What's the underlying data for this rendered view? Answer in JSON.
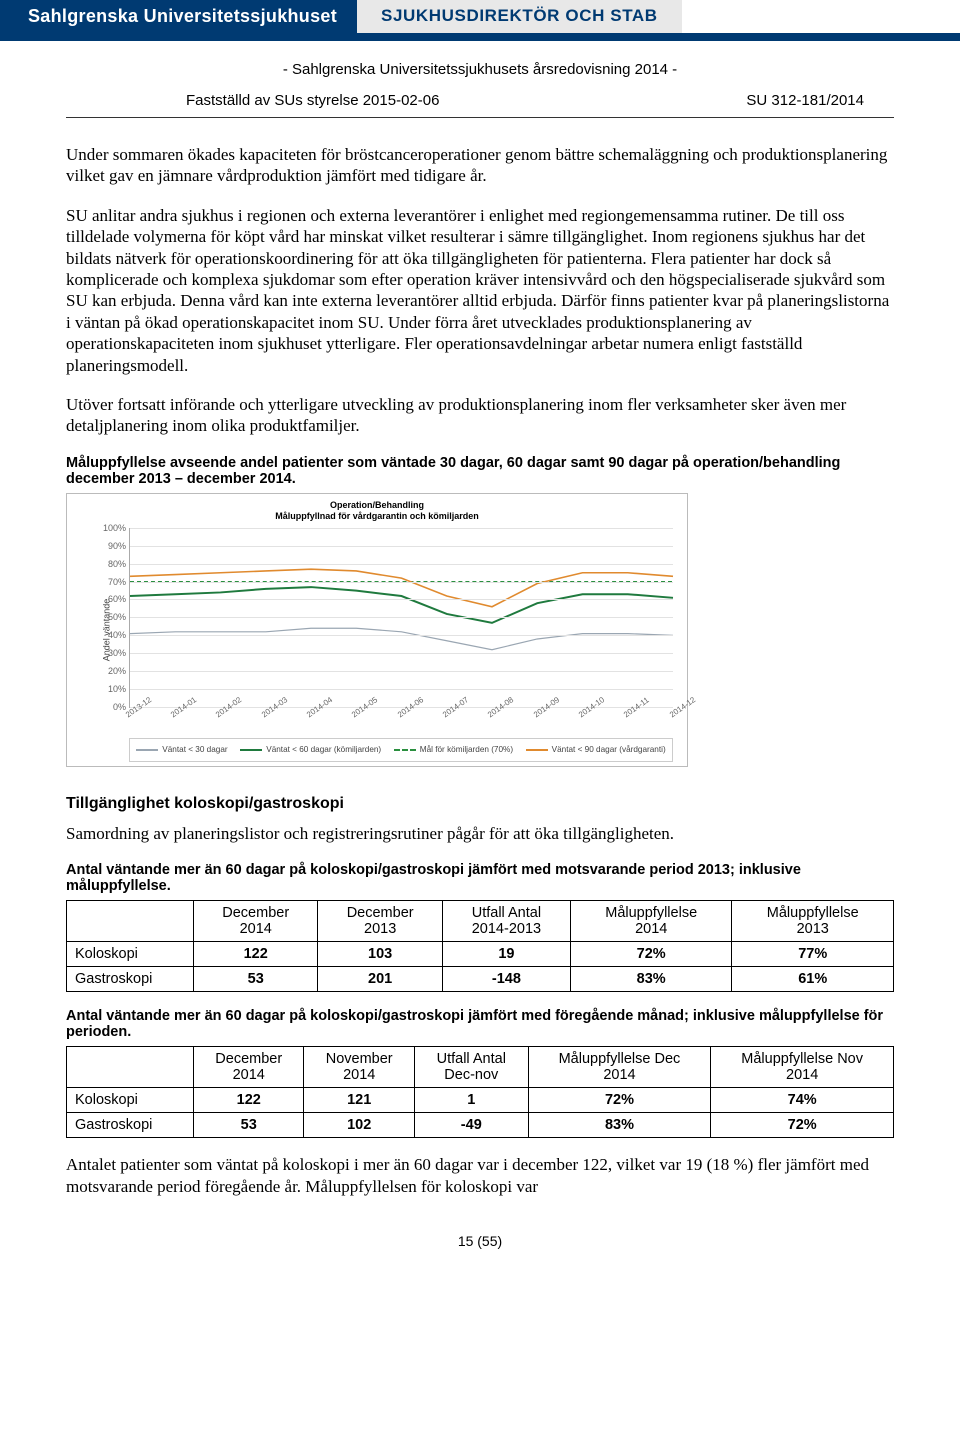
{
  "header": {
    "left": "Sahlgrenska Universitetssjukhuset",
    "right": "SJUKHUSDIREKTÖR OCH STAB"
  },
  "doc_title": "- Sahlgrenska Universitetssjukhusets årsredovisning 2014 -",
  "meta": {
    "approved": "Fastställd av SUs styrelse 2015-02-06",
    "docnum": "SU 312-181/2014"
  },
  "para1": "Under sommaren ökades kapaciteten för bröstcanceroperationer genom bättre schemaläggning och produktionsplanering vilket gav en jämnare vårdproduktion jämfört med tidigare år.",
  "para2": "SU anlitar andra sjukhus i regionen och externa leverantörer i enlighet med regiongemensamma rutiner. De till oss tilldelade volymerna för köpt vård har minskat vilket resulterar i sämre tillgänglighet. Inom regionens sjukhus har det bildats nätverk för operationskoordinering för att öka tillgängligheten för patienterna. Flera patienter har dock så komplicerade och komplexa sjukdomar som efter operation kräver intensivvård och den högspecialiserade sjukvård som SU kan erbjuda. Denna vård kan inte externa leverantörer alltid erbjuda. Därför finns patienter kvar på planeringslistorna i väntan på ökad operationskapacitet inom SU. Under förra året utvecklades produktionsplanering av operationskapaciteten inom sjukhuset ytterligare. Fler operationsavdelningar arbetar numera enligt fastställd planeringsmodell.",
  "para3": "Utöver fortsatt införande och ytterligare utveckling av produktionsplanering inom fler verksamheter sker även mer detaljplanering inom olika produktfamiljer.",
  "chart_caption": "Måluppfyllelse avseende andel patienter som väntade 30 dagar, 60 dagar samt 90 dagar på operation/behandling december 2013 – december 2014.",
  "chart": {
    "title_l1": "Operation/Behandling",
    "title_l2": "Måluppfyllnad för vårdgarantin och kömiljarden",
    "y_axis_label": "Andel väntande",
    "ylim": [
      0,
      100
    ],
    "ytick_step": 10,
    "ytick_suffix": "%",
    "categories": [
      "2013-12",
      "2014-01",
      "2014-02",
      "2014-03",
      "2014-04",
      "2014-05",
      "2014-06",
      "2014-07",
      "2014-08",
      "2014-09",
      "2014-10",
      "2014-11",
      "2014-12"
    ],
    "grid_color": "#e2e2e2",
    "axis_color": "#aaaaaa",
    "background_color": "#ffffff",
    "series": [
      {
        "name": "Väntat < 30 dagar",
        "color": "#9aa6b2",
        "dash": "none",
        "width": 1.2,
        "values": [
          41,
          42,
          42,
          42,
          44,
          44,
          42,
          37,
          32,
          38,
          41,
          41,
          40
        ]
      },
      {
        "name": "Väntat < 60 dagar (kömiljarden)",
        "color": "#1f7a3e",
        "dash": "none",
        "width": 2,
        "values": [
          62,
          63,
          64,
          66,
          67,
          65,
          62,
          52,
          47,
          58,
          63,
          63,
          61
        ]
      },
      {
        "name": "Mål för kömiljarden (70%)",
        "color": "#2a8f3f",
        "dash": "4,3",
        "width": 1.4,
        "values": [
          70,
          70,
          70,
          70,
          70,
          70,
          70,
          70,
          70,
          70,
          70,
          70,
          70
        ]
      },
      {
        "name": "Väntat < 90 dagar (vårdgaranti)",
        "color": "#e08a2e",
        "dash": "none",
        "width": 1.6,
        "values": [
          73,
          74,
          75,
          76,
          77,
          76,
          72,
          62,
          56,
          69,
          75,
          75,
          73
        ]
      }
    ],
    "legend_font_size": 8.2
  },
  "section2_title": "Tillgänglighet koloskopi/gastroskopi",
  "section2_intro": "Samordning av planeringslistor och registreringsrutiner pågår för att öka tillgängligheten.",
  "table1": {
    "caption": "Antal väntande mer än 60 dagar på koloskopi/gastroskopi jämfört med motsvarande period 2013; inklusive måluppfyllelse.",
    "columns": [
      "",
      "December 2014",
      "December 2013",
      "Utfall Antal 2014-2013",
      "Måluppfyllelse 2014",
      "Måluppfyllelse 2013"
    ],
    "rows": [
      [
        "Koloskopi",
        "122",
        "103",
        "19",
        "72%",
        "77%"
      ],
      [
        "Gastroskopi",
        "53",
        "201",
        "-148",
        "83%",
        "61%"
      ]
    ]
  },
  "table2": {
    "caption": "Antal väntande mer än 60 dagar på koloskopi/gastroskopi jämfört med föregående månad; inklusive måluppfyllelse för perioden.",
    "columns": [
      "",
      "December 2014",
      "November 2014",
      "Utfall Antal Dec-nov",
      "Måluppfyllelse Dec 2014",
      "Måluppfyllelse Nov 2014"
    ],
    "rows": [
      [
        "Koloskopi",
        "122",
        "121",
        "1",
        "72%",
        "74%"
      ],
      [
        "Gastroskopi",
        "53",
        "102",
        "-49",
        "83%",
        "72%"
      ]
    ]
  },
  "closing": "Antalet patienter som väntat på koloskopi i mer än 60 dagar var i december 122, vilket var 19 (18 %) fler jämfört med motsvarande period föregående år. Måluppfyllelsen för koloskopi var",
  "pagenum": "15 (55)"
}
